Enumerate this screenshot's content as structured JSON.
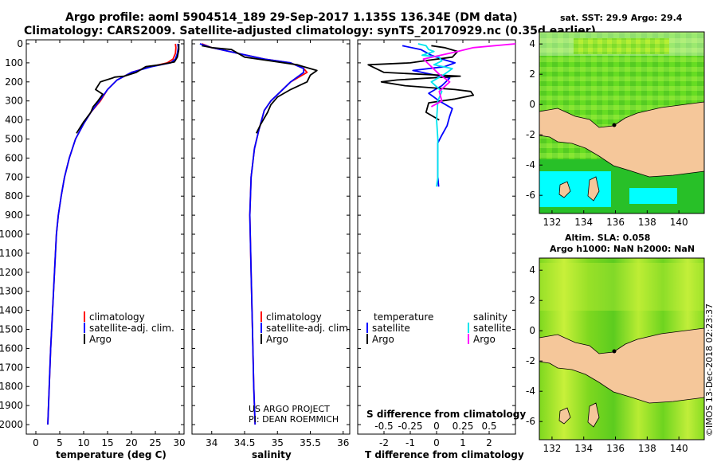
{
  "title": {
    "line1": "Argo profile: aoml 5904514_189 29-Sep-2017 1.135S 136.34E (DM data)",
    "line2": "Climatology: CARS2009. Satellite-adjusted climatology: synTS_20170929.nc (0.35d earlier)"
  },
  "colors": {
    "climatology": "#ff0000",
    "satellite": "#0000ff",
    "argo": "#000000",
    "salinity_sat": "#00e5ee",
    "salinity_argo": "#ff00ff",
    "land": "#f5c79a",
    "sea_cyan": "#00ffff",
    "sea_green": "#22cc22"
  },
  "chart_data": [
    {
      "type": "line",
      "name": "temperature-panel",
      "xlabel": "temperature (deg C)",
      "ylabel": "",
      "xlim": [
        -2,
        31
      ],
      "ylim": [
        2050,
        0
      ],
      "xticks": [
        0,
        5,
        10,
        15,
        20,
        25,
        30
      ],
      "yticks": [
        0,
        100,
        200,
        300,
        400,
        500,
        600,
        700,
        800,
        900,
        1000,
        1100,
        1200,
        1300,
        1400,
        1500,
        1600,
        1700,
        1800,
        1900,
        2000
      ],
      "legend": [
        "climatology",
        "satellite-adj. clim.",
        "Argo"
      ],
      "series": [
        {
          "name": "climatology",
          "color_key": "climatology",
          "points": [
            [
              29.2,
              0
            ],
            [
              29.3,
              20
            ],
            [
              29.2,
              50
            ],
            [
              28.7,
              80
            ],
            [
              27.5,
              100
            ],
            [
              24,
              120
            ],
            [
              20,
              150
            ],
            [
              17,
              190
            ],
            [
              15,
              240
            ],
            [
              13.5,
              300
            ],
            [
              11.5,
              360
            ],
            [
              10,
              420
            ],
            [
              8.3,
              500
            ],
            [
              7,
              600
            ],
            [
              6,
              700
            ],
            [
              5.3,
              800
            ],
            [
              4.7,
              900
            ],
            [
              4.3,
              1000
            ],
            [
              3.9,
              1200
            ],
            [
              3.5,
              1400
            ],
            [
              3.1,
              1600
            ],
            [
              2.8,
              1800
            ],
            [
              2.5,
              2000
            ]
          ]
        },
        {
          "name": "satellite-adj. clim.",
          "color_key": "satellite",
          "points": [
            [
              29.7,
              0
            ],
            [
              29.8,
              20
            ],
            [
              29.6,
              50
            ],
            [
              29.2,
              80
            ],
            [
              28.2,
              100
            ],
            [
              24.2,
              120
            ],
            [
              20,
              150
            ],
            [
              17,
              190
            ],
            [
              15,
              240
            ],
            [
              13.3,
              300
            ],
            [
              11.5,
              360
            ],
            [
              10,
              420
            ],
            [
              8.3,
              500
            ],
            [
              7,
              600
            ],
            [
              6,
              700
            ],
            [
              5.3,
              800
            ],
            [
              4.7,
              900
            ],
            [
              4.3,
              1000
            ],
            [
              3.9,
              1200
            ],
            [
              3.5,
              1400
            ],
            [
              3.1,
              1600
            ],
            [
              2.8,
              1800
            ],
            [
              2.5,
              2000
            ]
          ]
        },
        {
          "name": "Argo",
          "color_key": "argo",
          "points": [
            [
              29.9,
              0
            ],
            [
              29.9,
              30
            ],
            [
              29.6,
              70
            ],
            [
              29,
              95
            ],
            [
              26,
              110
            ],
            [
              23,
              120
            ],
            [
              21,
              150
            ],
            [
              18.5,
              170
            ],
            [
              16.5,
              175
            ],
            [
              16,
              180
            ],
            [
              13.5,
              200
            ],
            [
              12.5,
              240
            ],
            [
              14,
              265
            ],
            [
              13,
              300
            ],
            [
              12,
              330
            ],
            [
              11.5,
              360
            ],
            [
              10,
              410
            ],
            [
              8.5,
              470
            ]
          ]
        }
      ]
    },
    {
      "type": "line",
      "name": "salinity-panel",
      "xlabel": "salinity",
      "xlim": [
        33.7,
        36.1
      ],
      "ylim": [
        2050,
        0
      ],
      "xticks": [
        34,
        34.5,
        35,
        35.5,
        36
      ],
      "xticklabels": [
        "34",
        "34.5",
        "35",
        "35.5",
        "36"
      ],
      "legend": [
        "climatology",
        "satellite-adj. clim.",
        "Argo"
      ],
      "series": [
        {
          "name": "climatology",
          "color_key": "climatology",
          "points": [
            [
              33.85,
              0
            ],
            [
              34,
              20
            ],
            [
              34.4,
              50
            ],
            [
              34.8,
              80
            ],
            [
              35.2,
              100
            ],
            [
              35.4,
              130
            ],
            [
              35.45,
              150
            ],
            [
              35.2,
              200
            ],
            [
              35.05,
              250
            ],
            [
              34.9,
              300
            ],
            [
              34.8,
              350
            ],
            [
              34.72,
              450
            ],
            [
              34.65,
              550
            ],
            [
              34.6,
              700
            ],
            [
              34.58,
              900
            ],
            [
              34.6,
              1200
            ],
            [
              34.62,
              1500
            ],
            [
              34.64,
              1800
            ],
            [
              34.66,
              2000
            ]
          ]
        },
        {
          "name": "satellite-adj. clim.",
          "color_key": "satellite",
          "points": [
            [
              33.82,
              0
            ],
            [
              34,
              20
            ],
            [
              34.4,
              50
            ],
            [
              34.8,
              80
            ],
            [
              35.2,
              100
            ],
            [
              35.4,
              130
            ],
            [
              35.4,
              150
            ],
            [
              35.2,
              200
            ],
            [
              35.05,
              250
            ],
            [
              34.9,
              300
            ],
            [
              34.8,
              350
            ],
            [
              34.72,
              450
            ],
            [
              34.65,
              550
            ],
            [
              34.6,
              700
            ],
            [
              34.58,
              900
            ],
            [
              34.6,
              1200
            ],
            [
              34.62,
              1500
            ],
            [
              34.64,
              1800
            ],
            [
              34.66,
              2000
            ]
          ]
        },
        {
          "name": "Argo",
          "color_key": "argo",
          "points": [
            [
              33.85,
              10
            ],
            [
              34,
              20
            ],
            [
              34.3,
              30
            ],
            [
              34.5,
              70
            ],
            [
              34.9,
              90
            ],
            [
              35.3,
              110
            ],
            [
              35.4,
              120
            ],
            [
              35.6,
              140
            ],
            [
              35.5,
              165
            ],
            [
              35.45,
              200
            ],
            [
              35.2,
              240
            ],
            [
              35,
              280
            ],
            [
              34.9,
              320
            ],
            [
              34.85,
              360
            ],
            [
              34.75,
              420
            ],
            [
              34.68,
              470
            ]
          ]
        }
      ]
    },
    {
      "type": "line",
      "name": "difference-panel",
      "xlabel": "T difference from climatology",
      "xlabel_top": "S difference from climatology",
      "xlim": [
        -3,
        3
      ],
      "ylim": [
        2050,
        0
      ],
      "xticks": [
        -2,
        -1,
        0,
        1,
        2
      ],
      "xticklabels": [
        "-2",
        "-1",
        "0",
        "1",
        "2"
      ],
      "sticks": [
        "-0.5",
        "-0.25",
        "0",
        "0.25",
        "0.5"
      ],
      "legend_left_header": "temperature",
      "legend_right_header": "salinity",
      "legend": [
        "satellite",
        "Argo",
        "satellite",
        "Argo"
      ],
      "series": [
        {
          "name": "T satellite",
          "color_key": "satellite",
          "points": [
            [
              -1.3,
              10
            ],
            [
              -0.6,
              30
            ],
            [
              -0.2,
              60
            ],
            [
              0.2,
              80
            ],
            [
              0.7,
              100
            ],
            [
              0.3,
              120
            ],
            [
              -0.9,
              140
            ],
            [
              -0.2,
              160
            ],
            [
              0.5,
              180
            ],
            [
              0.2,
              220
            ],
            [
              -0.3,
              260
            ],
            [
              0.1,
              300
            ],
            [
              0.6,
              340
            ],
            [
              0.5,
              380
            ],
            [
              0.4,
              430
            ],
            [
              0.2,
              480
            ],
            [
              0.05,
              520
            ],
            [
              0.05,
              700
            ],
            [
              0.08,
              750
            ]
          ]
        },
        {
          "name": "T Argo",
          "color_key": "argo",
          "points": [
            [
              -0.2,
              10
            ],
            [
              0.3,
              20
            ],
            [
              0.8,
              40
            ],
            [
              0.6,
              70
            ],
            [
              -0.5,
              90
            ],
            [
              -1,
              100
            ],
            [
              -2.6,
              110
            ],
            [
              -2,
              150
            ],
            [
              0.9,
              170
            ],
            [
              -1.5,
              190
            ],
            [
              -2.1,
              200
            ],
            [
              -1.2,
              220
            ],
            [
              0.7,
              240
            ],
            [
              1.3,
              250
            ],
            [
              1.4,
              270
            ],
            [
              0.7,
              290
            ],
            [
              -0.3,
              310
            ],
            [
              -0.4,
              360
            ],
            [
              0.1,
              400
            ]
          ]
        },
        {
          "name": "S satellite",
          "color_key": "salinity_sat",
          "points": [
            [
              -0.7,
              0
            ],
            [
              -0.4,
              10
            ],
            [
              -0.3,
              30
            ],
            [
              -0.1,
              40
            ],
            [
              -0.55,
              60
            ],
            [
              0.1,
              70
            ],
            [
              0.2,
              90
            ],
            [
              -0.1,
              110
            ],
            [
              0.6,
              130
            ],
            [
              0.3,
              160
            ],
            [
              -0.2,
              200
            ],
            [
              0.2,
              250
            ],
            [
              0.05,
              300
            ],
            [
              0,
              400
            ],
            [
              0.05,
              500
            ],
            [
              0.05,
              700
            ],
            [
              0,
              750
            ]
          ]
        },
        {
          "name": "S Argo",
          "color_key": "salinity_argo",
          "points": [
            [
              3,
              0
            ],
            [
              1.4,
              20
            ],
            [
              0.8,
              40
            ],
            [
              -0.5,
              80
            ],
            [
              -0.2,
              120
            ],
            [
              0.1,
              160
            ],
            [
              0.5,
              200
            ],
            [
              0.1,
              250
            ],
            [
              0.2,
              300
            ],
            [
              -0.2,
              330
            ]
          ]
        }
      ]
    },
    {
      "type": "heatmap",
      "name": "sst-map",
      "title": "sat. SST: 29.9 Argo: 29.4",
      "xlim": [
        131.2,
        141.6
      ],
      "ylim": [
        -7.2,
        4.8
      ],
      "xticks": [
        132,
        134,
        136,
        138,
        140
      ],
      "yticks": [
        4,
        2,
        0,
        -2,
        -4,
        -6
      ],
      "profile_location": [
        136.34,
        -1.135
      ]
    },
    {
      "type": "heatmap",
      "name": "sla-map",
      "title_line1": "Altim. SLA: 0.058",
      "title_line2": "Argo h1000: NaN h2000: NaN",
      "xlim": [
        131.2,
        141.6
      ],
      "ylim": [
        -7.2,
        4.8
      ],
      "xticks": [
        132,
        134,
        136,
        138,
        140
      ],
      "yticks": [
        4,
        2,
        0,
        -2,
        -4,
        -6
      ],
      "profile_location": [
        136.34,
        -1.135
      ]
    }
  ],
  "credit": {
    "line1": "US ARGO PROJECT",
    "line2": "PI: DEAN ROEMMICH"
  },
  "watermark": "©IMOS 13-Dec-2018 02:23:37"
}
